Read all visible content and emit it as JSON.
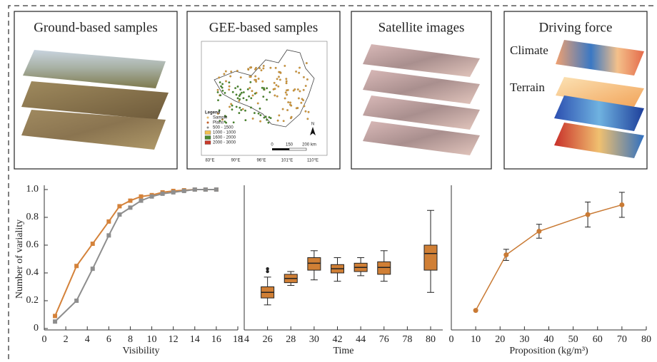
{
  "panels": [
    {
      "title": "Ground-based samples"
    },
    {
      "title": "GEE-based samples",
      "legend": {
        "title": "Legend",
        "items": [
          "Sample",
          "Plans",
          "500 - 1500",
          "1000 - 1000",
          "1600 - 2000",
          "2000 - 3000"
        ]
      },
      "lon_labels": [
        "83°E",
        "90°E",
        "96°E",
        "101°E",
        "110°E"
      ],
      "scale_labels": [
        "0",
        "150",
        "200 km"
      ],
      "north": "N"
    },
    {
      "title": "Satellite images"
    },
    {
      "title": "Driving force",
      "labels": [
        "Climate",
        "Terrain"
      ]
    }
  ],
  "chart_data": [
    {
      "type": "line",
      "xlabel": "Visibility",
      "ylabel": "Number of variality",
      "x": [
        1,
        3,
        4.5,
        6,
        7,
        8,
        9,
        10,
        11,
        12,
        13,
        14,
        15,
        16
      ],
      "series": [
        {
          "color": "#d4823a",
          "values": [
            0.09,
            0.45,
            0.61,
            0.77,
            0.88,
            0.92,
            0.95,
            0.96,
            0.98,
            0.99,
            0.995,
            1.0,
            1.0,
            1.0
          ]
        },
        {
          "color": "#8e8e8e",
          "values": [
            0.05,
            0.2,
            0.43,
            0.67,
            0.82,
            0.87,
            0.92,
            0.95,
            0.97,
            0.98,
            0.99,
            1.0,
            1.0,
            1.0
          ]
        }
      ],
      "xlim": [
        0,
        18
      ],
      "xticks": [
        0,
        2,
        4,
        6,
        8,
        10,
        12,
        14,
        16,
        18
      ],
      "ylim": [
        0,
        1
      ],
      "yticks": [
        0,
        0.2,
        0.4,
        0.6,
        0.8,
        {
          "value": 1,
          "label": "1.0"
        }
      ]
    },
    {
      "type": "box",
      "xlabel": "Time",
      "color": "#d07f35",
      "categories": [
        "14",
        "26",
        "28",
        "30",
        "42",
        "44",
        "76",
        "78",
        "80"
      ],
      "boxes": [
        {
          "x": "26",
          "whislo": 0.17,
          "q1": 0.22,
          "med": 0.26,
          "q3": 0.3,
          "whishi": 0.37,
          "fliers": [
            0.41,
            0.43
          ]
        },
        {
          "x": "28",
          "whislo": 0.31,
          "q1": 0.33,
          "med": 0.36,
          "q3": 0.39,
          "whishi": 0.41,
          "fliers": []
        },
        {
          "x": "30",
          "whislo": 0.35,
          "q1": 0.42,
          "med": 0.47,
          "q3": 0.51,
          "whishi": 0.56,
          "fliers": []
        },
        {
          "x": "42",
          "whislo": 0.34,
          "q1": 0.4,
          "med": 0.43,
          "q3": 0.46,
          "whishi": 0.51,
          "fliers": []
        },
        {
          "x": "44",
          "whislo": 0.38,
          "q1": 0.41,
          "med": 0.44,
          "q3": 0.47,
          "whishi": 0.51,
          "fliers": []
        },
        {
          "x": "76",
          "whislo": 0.34,
          "q1": 0.39,
          "med": 0.44,
          "q3": 0.48,
          "whishi": 0.56,
          "fliers": []
        },
        {
          "x": "80",
          "whislo": 0.26,
          "q1": 0.42,
          "med": 0.54,
          "q3": 0.6,
          "whishi": 0.85,
          "fliers": []
        }
      ],
      "ylim": [
        0,
        1
      ]
    },
    {
      "type": "errorline",
      "xlabel": "Proposition (kg/m³)",
      "x": [
        10,
        22.5,
        36,
        56,
        70
      ],
      "series": [
        {
          "color": "#c97a34",
          "values": [
            0.13,
            0.53,
            0.7,
            0.82,
            0.89
          ],
          "errors": [
            0,
            0.04,
            0.05,
            0.09,
            0.09
          ]
        }
      ],
      "xlim": [
        0,
        80
      ],
      "xticks": [
        0,
        10,
        20,
        30,
        40,
        50,
        60,
        70,
        80
      ],
      "ylim": [
        0,
        1
      ]
    }
  ]
}
